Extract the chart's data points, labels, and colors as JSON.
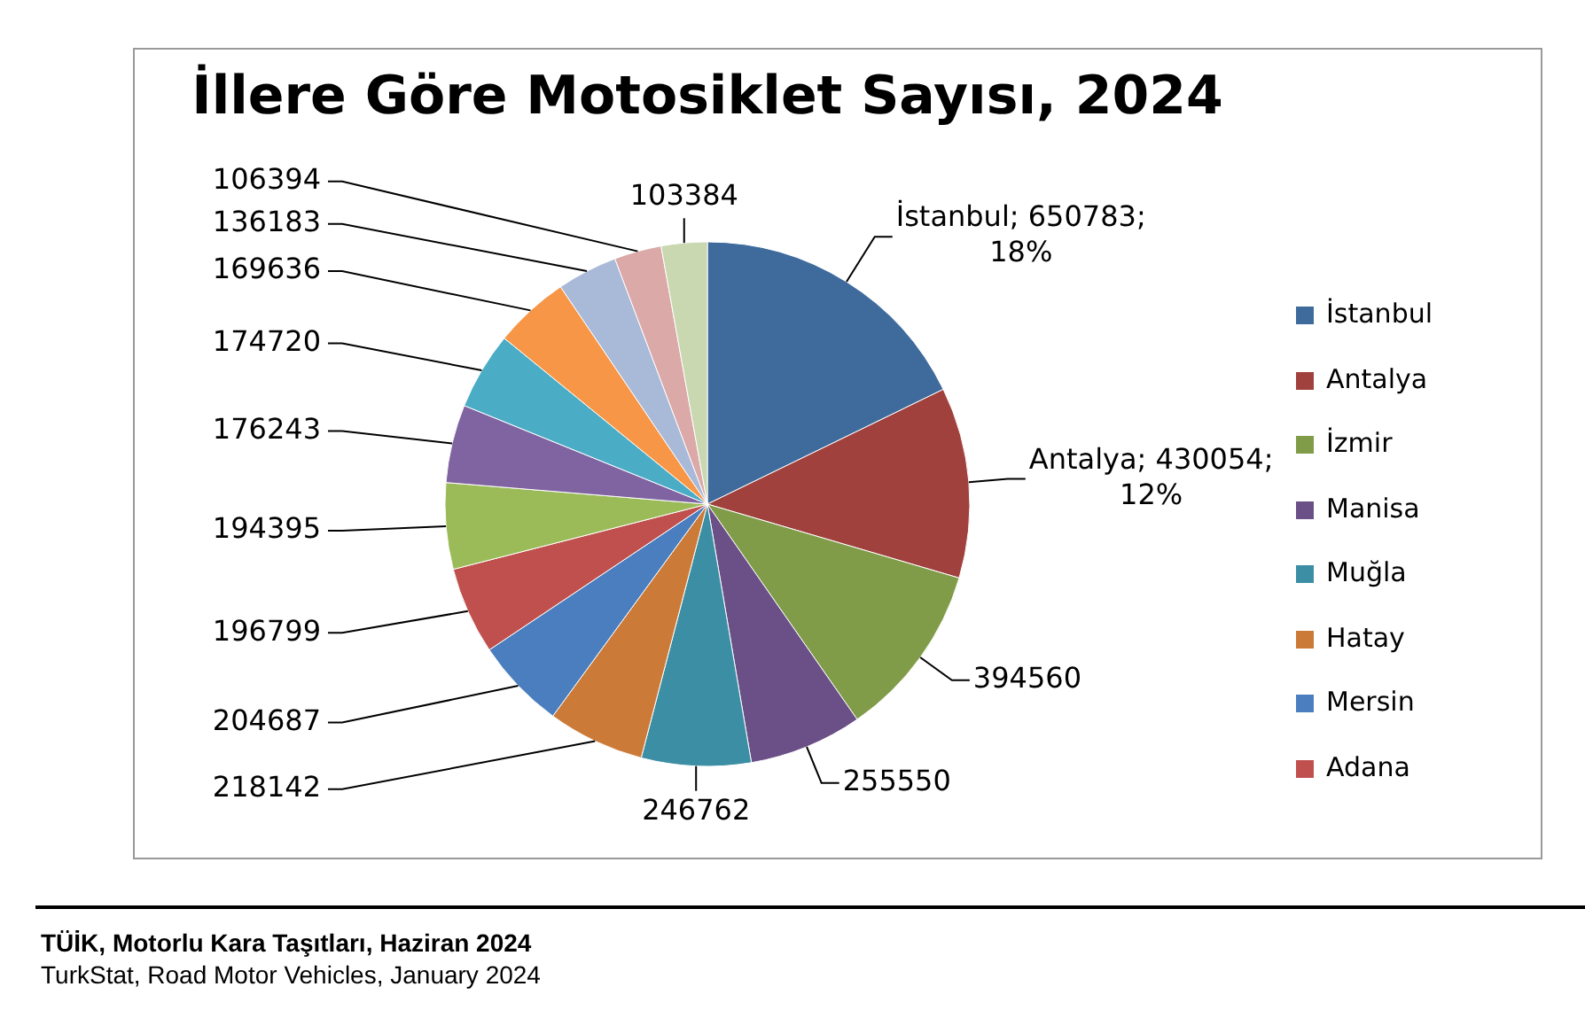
{
  "chart_data": {
    "type": "pie",
    "title": "İllere Göre Motosiklet Sayısı, 2024",
    "categories": [
      "İstanbul",
      "Antalya",
      "İzmir",
      "Manisa",
      "Muğla",
      "Hatay",
      "Mersin",
      "Adana",
      null,
      null,
      null,
      null,
      null,
      null,
      null
    ],
    "values": [
      650783,
      430054,
      394560,
      255550,
      246762,
      218142,
      204687,
      196799,
      194395,
      176243,
      174720,
      169636,
      136183,
      106394,
      103384
    ],
    "colors": [
      "#3e6a9c",
      "#a0413e",
      "#809c48",
      "#6a5086",
      "#3b8ea3",
      "#cc7a38",
      "#4a7ebf",
      "#c0504d",
      "#9bbb59",
      "#8064a2",
      "#4bacc6",
      "#f79646",
      "#a9b9d8",
      "#dba9a8",
      "#c9d8b0"
    ],
    "value_labels": [
      "İstanbul; 650783; 18%",
      "Antalya; 430054; 12%",
      "394560",
      "255550",
      "246762",
      "218142",
      "204687",
      "196799",
      "194395",
      "176243",
      "174720",
      "169636",
      "136183",
      "106394",
      "103384"
    ],
    "legend": "right",
    "annotations": [
      "TÜİK, Motorlu Kara Taşıtları, Haziran  2024",
      "TurkStat, Road Motor Vehicles,  January 2024"
    ]
  }
}
